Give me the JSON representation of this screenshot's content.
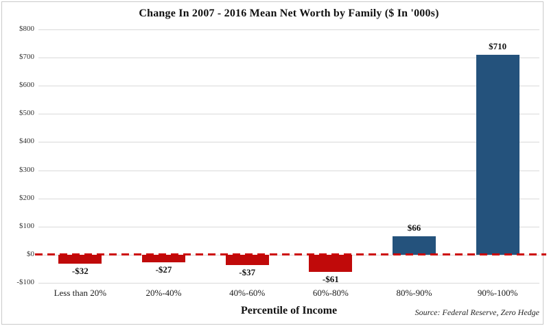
{
  "chart_data": {
    "type": "bar",
    "title": "Change In 2007 - 2016 Mean Net Worth by Family ($ In '000s)",
    "xlabel": "Percentile of Income",
    "ylabel": "",
    "source": "Source: Federal Reserve, Zero Hedge",
    "categories": [
      "Less than 20%",
      "20%-40%",
      "40%-60%",
      "60%-80%",
      "80%-90%",
      "90%-100%"
    ],
    "values": [
      -32,
      -27,
      -37,
      -61,
      66,
      710
    ],
    "value_labels": [
      "-$32",
      "-$27",
      "-$37",
      "-$61",
      "$66",
      "$710"
    ],
    "ylim": [
      -100,
      800
    ],
    "ytick_step": 100,
    "ytick_labels": [
      "-$100",
      "$0",
      "$100",
      "$200",
      "$300",
      "$400",
      "$500",
      "$600",
      "$700",
      "$800"
    ],
    "grid": true,
    "legend": "none",
    "zero_line": {
      "value": 0,
      "style": "dashed"
    },
    "colors": {
      "positive_bar": "#24527c",
      "negative_bar": "#c00a0a",
      "zero_line": "#cc0000",
      "gridline": "#d9d9d9",
      "frame_border": "#c9c9c9",
      "text": "#111111"
    }
  }
}
